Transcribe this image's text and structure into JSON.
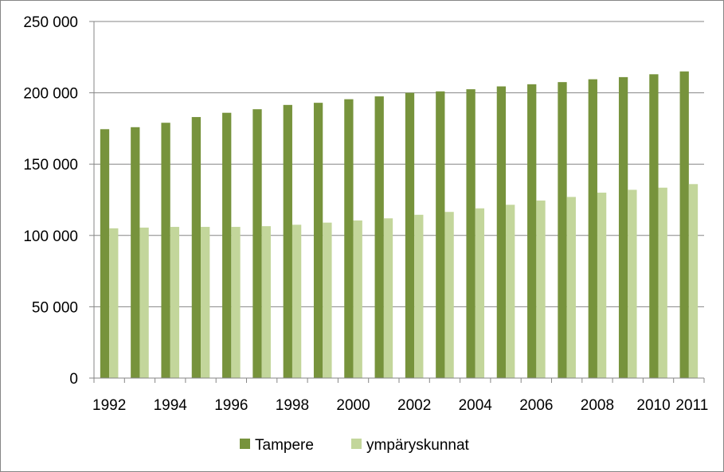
{
  "chart_data": {
    "type": "bar",
    "title": "",
    "xlabel": "",
    "ylabel": "",
    "categories": [
      "1992",
      "1993",
      "1994",
      "1995",
      "1996",
      "1997",
      "1998",
      "1999",
      "2000",
      "2001",
      "2002",
      "2003",
      "2004",
      "2005",
      "2006",
      "2007",
      "2008",
      "2009",
      "2010",
      "2011"
    ],
    "x_tick_labels": [
      "1992",
      "1994",
      "1996",
      "1998",
      "2000",
      "2002",
      "2004",
      "2006",
      "2008",
      "2010",
      "2011"
    ],
    "y_tick_labels": [
      "0",
      "50 000",
      "100 000",
      "150 000",
      "200 000",
      "250 000"
    ],
    "ylim": [
      0,
      250000
    ],
    "grid": "horizontal",
    "legend_position": "bottom",
    "series": [
      {
        "name": "Tampere",
        "color": "#77933c",
        "values": [
          174500,
          175900,
          179000,
          183000,
          186000,
          188500,
          191500,
          193000,
          195500,
          197500,
          200000,
          201000,
          202500,
          204500,
          206000,
          207500,
          209500,
          211000,
          213000,
          215000
        ]
      },
      {
        "name": "ympäryskunnat",
        "color": "#c3d69b",
        "values": [
          105000,
          105500,
          106000,
          106000,
          106000,
          106500,
          107500,
          109000,
          110500,
          112000,
          114500,
          116500,
          119000,
          121500,
          124500,
          127000,
          130000,
          132000,
          133500,
          136000
        ]
      }
    ]
  }
}
